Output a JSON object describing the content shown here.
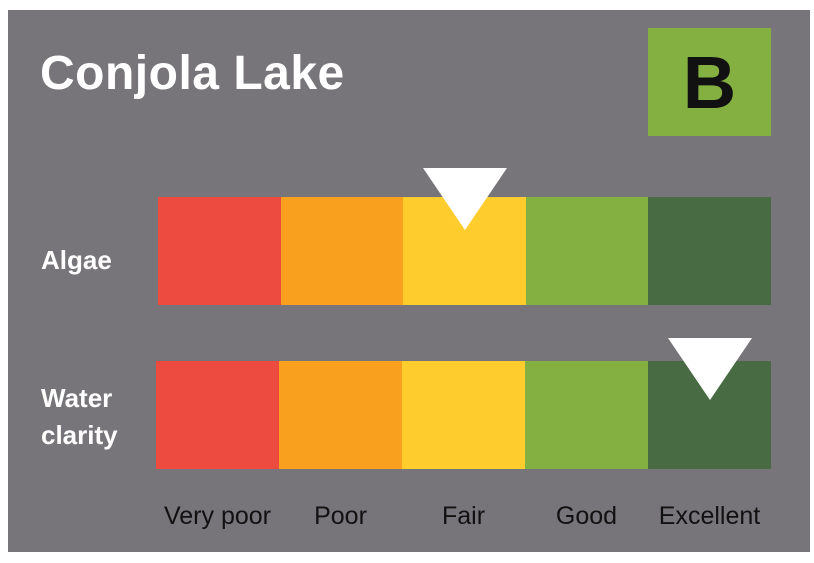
{
  "title": "Conjola Lake",
  "grade": {
    "letter": "B",
    "color": "#84b041"
  },
  "scale": {
    "labels": [
      "Very poor",
      "Poor",
      "Fair",
      "Good",
      "Excellent"
    ],
    "colors": [
      "#ee4b40",
      "#f9a11e",
      "#fecd2d",
      "#84b041",
      "#486b43"
    ]
  },
  "indicators": [
    {
      "label": "Algae",
      "rating": "Fair",
      "rating_index": 2,
      "marker_position": 0.5
    },
    {
      "label": "Water clarity",
      "rating": "Excellent",
      "rating_index": 4,
      "marker_position": 0.5
    }
  ]
}
